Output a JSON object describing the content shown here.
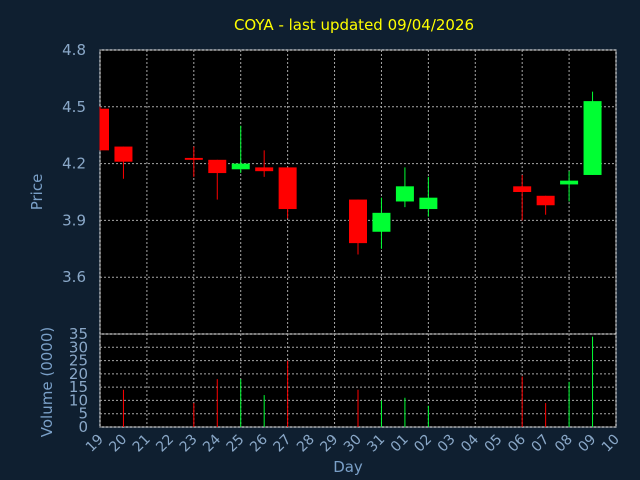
{
  "chart_data": [
    {
      "type": "candlestick",
      "title": "COYA - last updated 09/04/2026",
      "ylabel": "Price",
      "ylim": [
        3.3,
        4.8
      ],
      "yticks": [
        "3.6",
        "3.9",
        "4.2",
        "4.5",
        "4.8"
      ],
      "grid": true,
      "colors": {
        "up": "#00ff33",
        "down": "#ff0000",
        "background": "#0f1f30",
        "plot": "#ffffff"
      },
      "candles": [
        {
          "day": "19",
          "open": 4.49,
          "high": 4.5,
          "low": 4.27,
          "close": 4.27
        },
        {
          "day": "20",
          "open": 4.29,
          "high": 4.29,
          "low": 4.12,
          "close": 4.21
        },
        {
          "day": "23",
          "open": 4.23,
          "high": 4.29,
          "low": 4.13,
          "close": 4.22
        },
        {
          "day": "24",
          "open": 4.22,
          "high": 4.22,
          "low": 4.01,
          "close": 4.15
        },
        {
          "day": "25",
          "open": 4.17,
          "high": 4.4,
          "low": 4.15,
          "close": 4.2
        },
        {
          "day": "26",
          "open": 4.18,
          "high": 4.27,
          "low": 4.13,
          "close": 4.16
        },
        {
          "day": "27",
          "open": 4.18,
          "high": 4.18,
          "low": 3.91,
          "close": 3.96
        },
        {
          "day": "30",
          "open": 4.01,
          "high": 4.01,
          "low": 3.72,
          "close": 3.78
        },
        {
          "day": "31",
          "open": 3.84,
          "high": 4.02,
          "low": 3.75,
          "close": 3.94
        },
        {
          "day": "01",
          "open": 4.0,
          "high": 4.18,
          "low": 3.97,
          "close": 4.08
        },
        {
          "day": "02",
          "open": 3.96,
          "high": 4.13,
          "low": 3.92,
          "close": 4.02
        },
        {
          "day": "06",
          "open": 4.08,
          "high": 4.14,
          "low": 3.9,
          "close": 4.05
        },
        {
          "day": "07",
          "open": 4.03,
          "high": 4.03,
          "low": 3.93,
          "close": 3.98
        },
        {
          "day": "08",
          "open": 4.09,
          "high": 4.16,
          "low": 4.0,
          "close": 4.11
        },
        {
          "day": "09",
          "open": 4.14,
          "high": 4.58,
          "low": 4.14,
          "close": 4.53
        }
      ]
    },
    {
      "type": "bar",
      "ylabel": "Volume (0000)",
      "xlabel": "Day",
      "ylim": [
        0,
        35
      ],
      "yticks": [
        "0",
        "5",
        "10",
        "15",
        "20",
        "25",
        "30",
        "35"
      ],
      "grid": true,
      "categories": [
        "19",
        "20",
        "21",
        "22",
        "23",
        "24",
        "25",
        "26",
        "27",
        "28",
        "29",
        "30",
        "31",
        "01",
        "02",
        "03",
        "04",
        "05",
        "06",
        "07",
        "08",
        "09",
        "10"
      ],
      "bars": [
        {
          "day": "19",
          "value": 0,
          "color": "#ff0000"
        },
        {
          "day": "20",
          "value": 14,
          "color": "#ff0000"
        },
        {
          "day": "23",
          "value": 9,
          "color": "#ff0000"
        },
        {
          "day": "24",
          "value": 18,
          "color": "#ff0000"
        },
        {
          "day": "25",
          "value": 18,
          "color": "#00ff33"
        },
        {
          "day": "26",
          "value": 12,
          "color": "#00ff33"
        },
        {
          "day": "27",
          "value": 25,
          "color": "#ff0000"
        },
        {
          "day": "30",
          "value": 14,
          "color": "#ff0000"
        },
        {
          "day": "31",
          "value": 10,
          "color": "#00ff33"
        },
        {
          "day": "01",
          "value": 11,
          "color": "#00ff33"
        },
        {
          "day": "02",
          "value": 8,
          "color": "#00ff33"
        },
        {
          "day": "06",
          "value": 19,
          "color": "#ff0000"
        },
        {
          "day": "07",
          "value": 9,
          "color": "#ff0000"
        },
        {
          "day": "08",
          "value": 17,
          "color": "#00ff33"
        },
        {
          "day": "09",
          "value": 34,
          "color": "#00ff33"
        }
      ]
    }
  ]
}
